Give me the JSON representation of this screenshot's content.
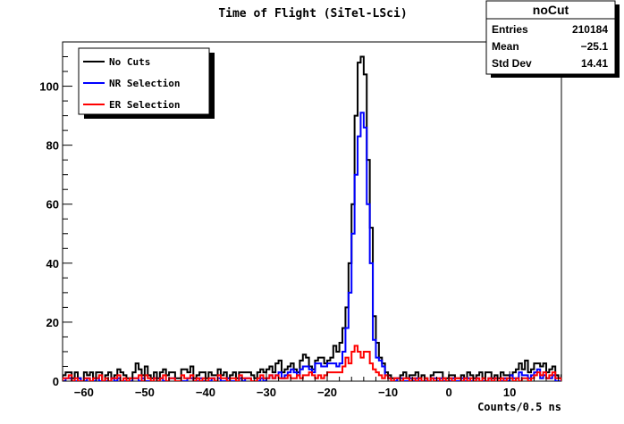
{
  "chart_data": {
    "type": "histogram",
    "title": "Time of Flight (SiTel-LSci)",
    "xlabel": "Counts/0.5 ns",
    "ylabel": "",
    "xlim": [
      -63.5,
      18.5
    ],
    "ylim": [
      0,
      115
    ],
    "bin_width": 0.5,
    "x_start": -63.5,
    "x_ticks": [
      -60,
      -50,
      -40,
      -30,
      -20,
      -10,
      0,
      10
    ],
    "y_ticks": [
      0,
      20,
      40,
      60,
      80,
      100
    ],
    "legend": {
      "placement": "top-left",
      "entries": [
        "No Cuts",
        "NR Selection",
        "ER Selection"
      ]
    },
    "colors": {
      "No Cuts": "#000000",
      "NR Selection": "#0000ff",
      "ER Selection": "#ff0000"
    },
    "series": [
      {
        "name": "No Cuts",
        "values": [
          2,
          3,
          3,
          1,
          3,
          1,
          0,
          3,
          2,
          3,
          1,
          3,
          3,
          0,
          2,
          3,
          1,
          2,
          4,
          3,
          2,
          1,
          1,
          3,
          6,
          4,
          2,
          5,
          2,
          1,
          3,
          1,
          3,
          4,
          2,
          3,
          3,
          1,
          1,
          4,
          4,
          3,
          5,
          1,
          2,
          3,
          3,
          1,
          3,
          2,
          2,
          4,
          2,
          3,
          1,
          2,
          3,
          1,
          3,
          3,
          3,
          3,
          2,
          1,
          3,
          4,
          3,
          4,
          5,
          3,
          6,
          7,
          3,
          4,
          5,
          6,
          4,
          3,
          7,
          9,
          8,
          5,
          4,
          7,
          8,
          8,
          6,
          7,
          8,
          12,
          10,
          13,
          18,
          25,
          40,
          60,
          90,
          108,
          110,
          104,
          75,
          52,
          22,
          13,
          8,
          6,
          3,
          2,
          1,
          1,
          1,
          2,
          3,
          1,
          2,
          2,
          3,
          1,
          2,
          1,
          0,
          2,
          3,
          3,
          3,
          1,
          1,
          2,
          2,
          1,
          1,
          2,
          1,
          3,
          2,
          1,
          2,
          3,
          1,
          3,
          3,
          1,
          2,
          1,
          3,
          2,
          2,
          2,
          3,
          4,
          6,
          4,
          7,
          3,
          4,
          6,
          6,
          5,
          6,
          3,
          4,
          5,
          2,
          1,
          2,
          4,
          3,
          1,
          2,
          3,
          2,
          2,
          3,
          2,
          4,
          1,
          2,
          4,
          3,
          3,
          3,
          4,
          1,
          2,
          5,
          3,
          1,
          1,
          1,
          1,
          3,
          3,
          1,
          2,
          2,
          3,
          3,
          3,
          5,
          2,
          1,
          2,
          4,
          2,
          3,
          3,
          2,
          3,
          2,
          1,
          3,
          1,
          3,
          2,
          1,
          3,
          2,
          1,
          1,
          4,
          3,
          1,
          1,
          1,
          2,
          1,
          1,
          3,
          3,
          3,
          3,
          3,
          2,
          2
        ]
      },
      {
        "name": "NR Selection",
        "values": [
          0,
          1,
          1,
          0,
          0,
          1,
          0,
          0,
          1,
          0,
          0,
          1,
          0,
          0,
          0,
          0,
          1,
          0,
          1,
          0,
          0,
          0,
          0,
          1,
          1,
          0,
          1,
          0,
          0,
          0,
          1,
          0,
          1,
          0,
          0,
          1,
          1,
          0,
          0,
          0,
          0,
          1,
          1,
          0,
          0,
          1,
          0,
          0,
          0,
          1,
          0,
          1,
          0,
          0,
          1,
          0,
          0,
          0,
          1,
          0,
          1,
          1,
          0,
          0,
          0,
          1,
          0,
          1,
          2,
          1,
          2,
          3,
          1,
          2,
          3,
          4,
          3,
          2,
          4,
          5,
          5,
          4,
          3,
          6,
          6,
          5,
          5,
          6,
          6,
          6,
          5,
          6,
          10,
          18,
          30,
          50,
          70,
          83,
          91,
          86,
          60,
          40,
          14,
          8,
          7,
          5,
          2,
          1,
          0,
          0,
          1,
          1,
          0,
          0,
          1,
          0,
          1,
          0,
          0,
          0,
          0,
          1,
          1,
          0,
          1,
          0,
          0,
          0,
          1,
          0,
          0,
          1,
          0,
          1,
          0,
          0,
          1,
          0,
          0,
          0,
          1,
          0,
          1,
          0,
          0,
          1,
          0,
          2,
          1,
          1,
          3,
          2,
          2,
          1,
          2,
          3,
          4,
          1,
          2,
          1,
          1,
          2,
          0,
          0,
          1,
          2,
          1,
          0,
          1,
          1,
          0,
          1,
          1,
          0,
          1,
          0,
          1,
          0,
          1,
          0,
          1,
          2,
          0,
          0,
          1,
          0,
          0,
          0,
          0,
          1,
          1,
          0,
          0,
          1,
          0,
          0,
          2,
          1,
          1,
          1,
          0,
          0,
          2,
          1,
          1,
          0,
          1,
          1,
          0,
          0,
          1,
          0,
          1,
          0,
          0,
          1,
          1,
          0,
          0,
          1,
          0,
          0,
          1,
          0,
          0,
          1,
          0,
          0,
          1,
          1,
          0,
          1,
          1,
          0
        ]
      },
      {
        "name": "ER Selection",
        "values": [
          1,
          1,
          2,
          0,
          1,
          0,
          0,
          1,
          1,
          0,
          1,
          1,
          2,
          0,
          1,
          0,
          1,
          1,
          2,
          0,
          1,
          0,
          1,
          1,
          1,
          2,
          0,
          2,
          1,
          0,
          1,
          0,
          1,
          2,
          0,
          1,
          1,
          0,
          0,
          2,
          1,
          1,
          2,
          0,
          1,
          0,
          1,
          0,
          1,
          1,
          0,
          2,
          1,
          1,
          0,
          1,
          1,
          0,
          2,
          1,
          1,
          1,
          0,
          0,
          1,
          2,
          1,
          1,
          2,
          1,
          2,
          1,
          1,
          1,
          2,
          1,
          1,
          2,
          1,
          2,
          2,
          3,
          2,
          1,
          2,
          1,
          2,
          3,
          3,
          3,
          3,
          3,
          5,
          8,
          6,
          10,
          12,
          10,
          8,
          10,
          10,
          6,
          4,
          3,
          2,
          1,
          2,
          1,
          0,
          1,
          1,
          0,
          1,
          1,
          0,
          1,
          0,
          1,
          0,
          1,
          0,
          1,
          0,
          1,
          0,
          1,
          0,
          1,
          0,
          1,
          1,
          0,
          1,
          0,
          1,
          0,
          1,
          0,
          1,
          0,
          1,
          0,
          1,
          0,
          1,
          0,
          1,
          1,
          0,
          1,
          0,
          1,
          1,
          0,
          1,
          2,
          3,
          2,
          3,
          1,
          2,
          3,
          1,
          1,
          0,
          1,
          0,
          1,
          0,
          1,
          0,
          1,
          0,
          1,
          1,
          0,
          1,
          1,
          0,
          1,
          0,
          1,
          1,
          0,
          1,
          0,
          1,
          0,
          1,
          0,
          0,
          1,
          1,
          0,
          1,
          0,
          1,
          1,
          2,
          1,
          0,
          1,
          1,
          0,
          1,
          1,
          0,
          1,
          0,
          0,
          1,
          0,
          1,
          0,
          1,
          1,
          0,
          1,
          0,
          1,
          0,
          0,
          1,
          1,
          0,
          1,
          0,
          0,
          1,
          0,
          1,
          1,
          1,
          1,
          0,
          1,
          1
        ]
      }
    ]
  },
  "stats_box": {
    "title": "noCut",
    "rows": [
      {
        "label": "Entries",
        "value": "210184"
      },
      {
        "label": "Mean",
        "value": "−25.1"
      },
      {
        "label": "Std Dev",
        "value": "14.41"
      }
    ]
  }
}
